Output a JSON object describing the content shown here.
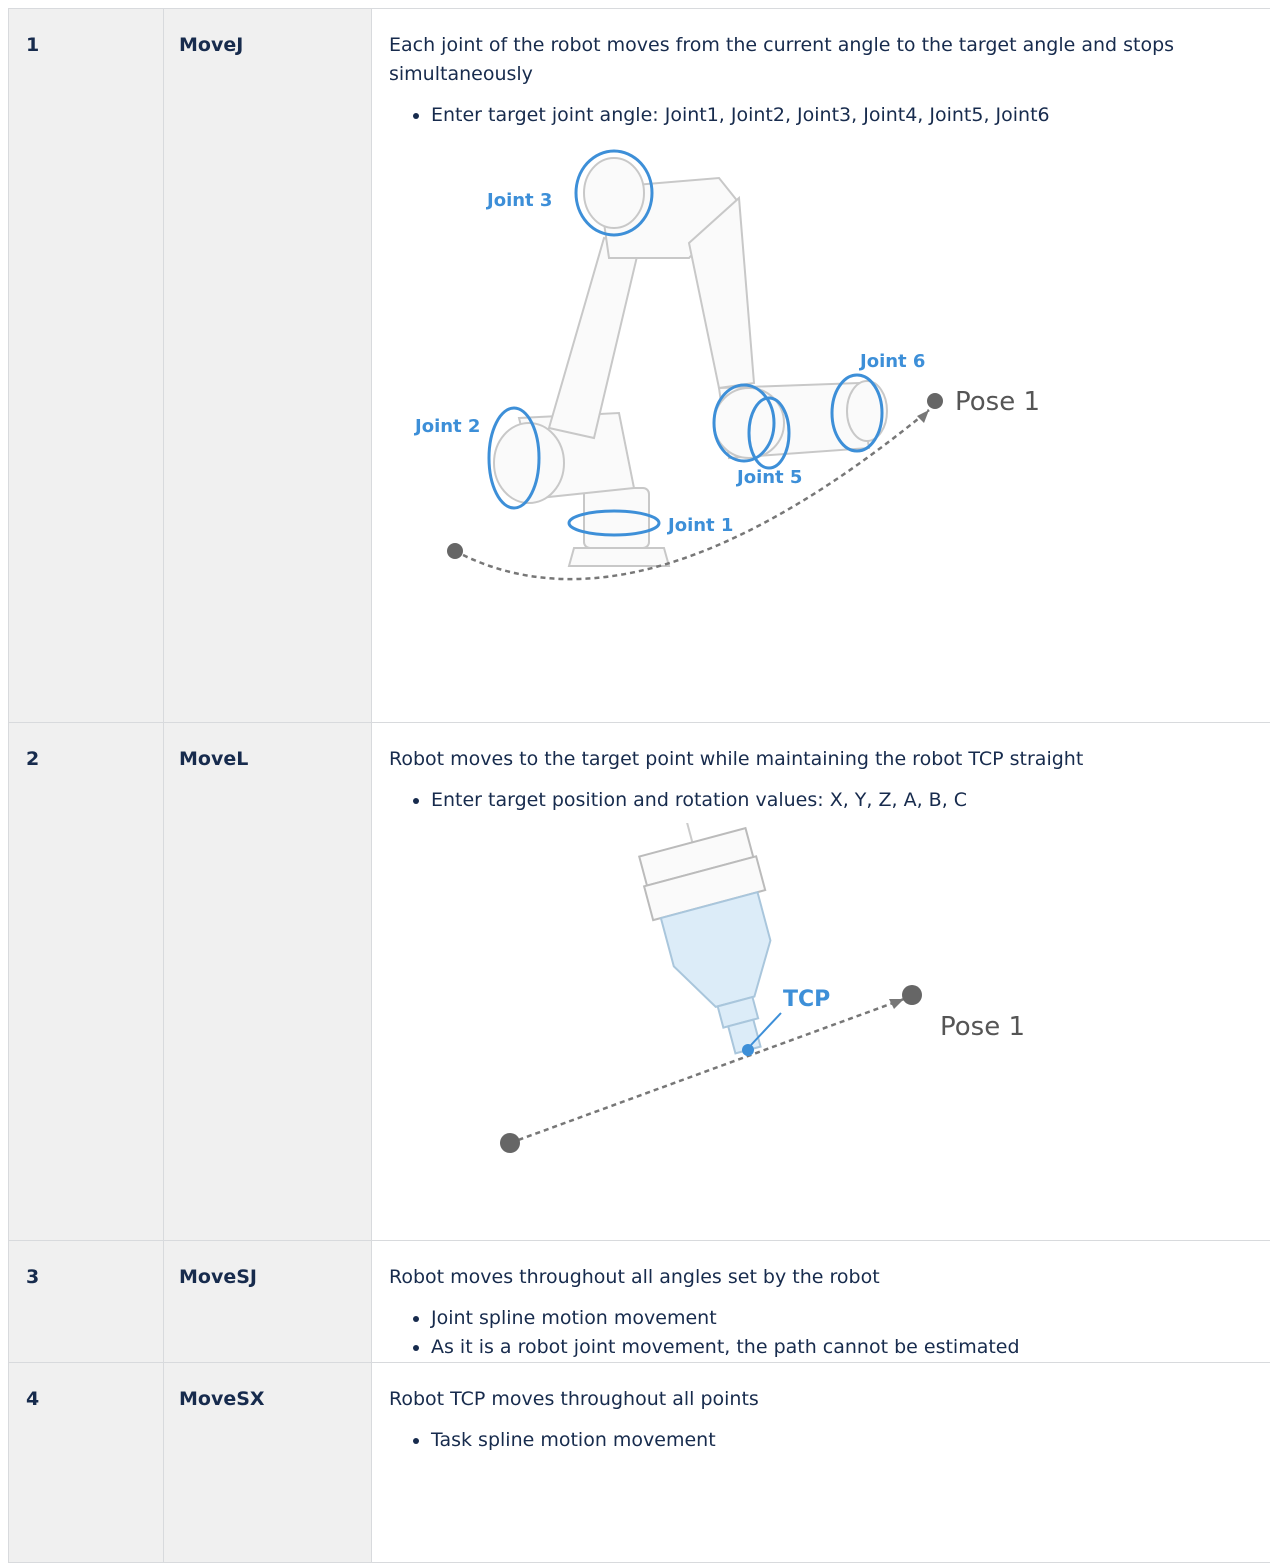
{
  "table": {
    "rows": [
      {
        "number": "1",
        "name": "MoveJ",
        "description": "Each joint of the robot moves from the current angle to the target angle and stops simultaneously",
        "bullets": [
          "Enter target joint angle: Joint1, Joint2, Joint3, Joint4, Joint5, Joint6"
        ],
        "figure": {
          "joint_3": "Joint 3",
          "joint_2": "Joint 2",
          "joint_1": "Joint 1",
          "joint_5": "Joint 5",
          "joint_6": "Joint 6",
          "pose": "Pose 1"
        }
      },
      {
        "number": "2",
        "name": "MoveL",
        "description": "Robot moves to the target point while maintaining the robot TCP straight",
        "bullets": [
          "Enter target position and rotation values: X, Y, Z, A, B, C"
        ],
        "figure": {
          "tcp": "TCP",
          "pose": "Pose 1"
        }
      },
      {
        "number": "3",
        "name": "MoveSJ",
        "description": "Robot moves throughout all angles set by the robot",
        "bullets": [
          "Joint spline motion movement",
          "As it is a robot joint movement, the path cannot be estimated"
        ]
      },
      {
        "number": "4",
        "name": "MoveSX",
        "description": "Robot TCP moves throughout all points",
        "bullets": [
          "Task spline motion movement"
        ]
      }
    ]
  }
}
